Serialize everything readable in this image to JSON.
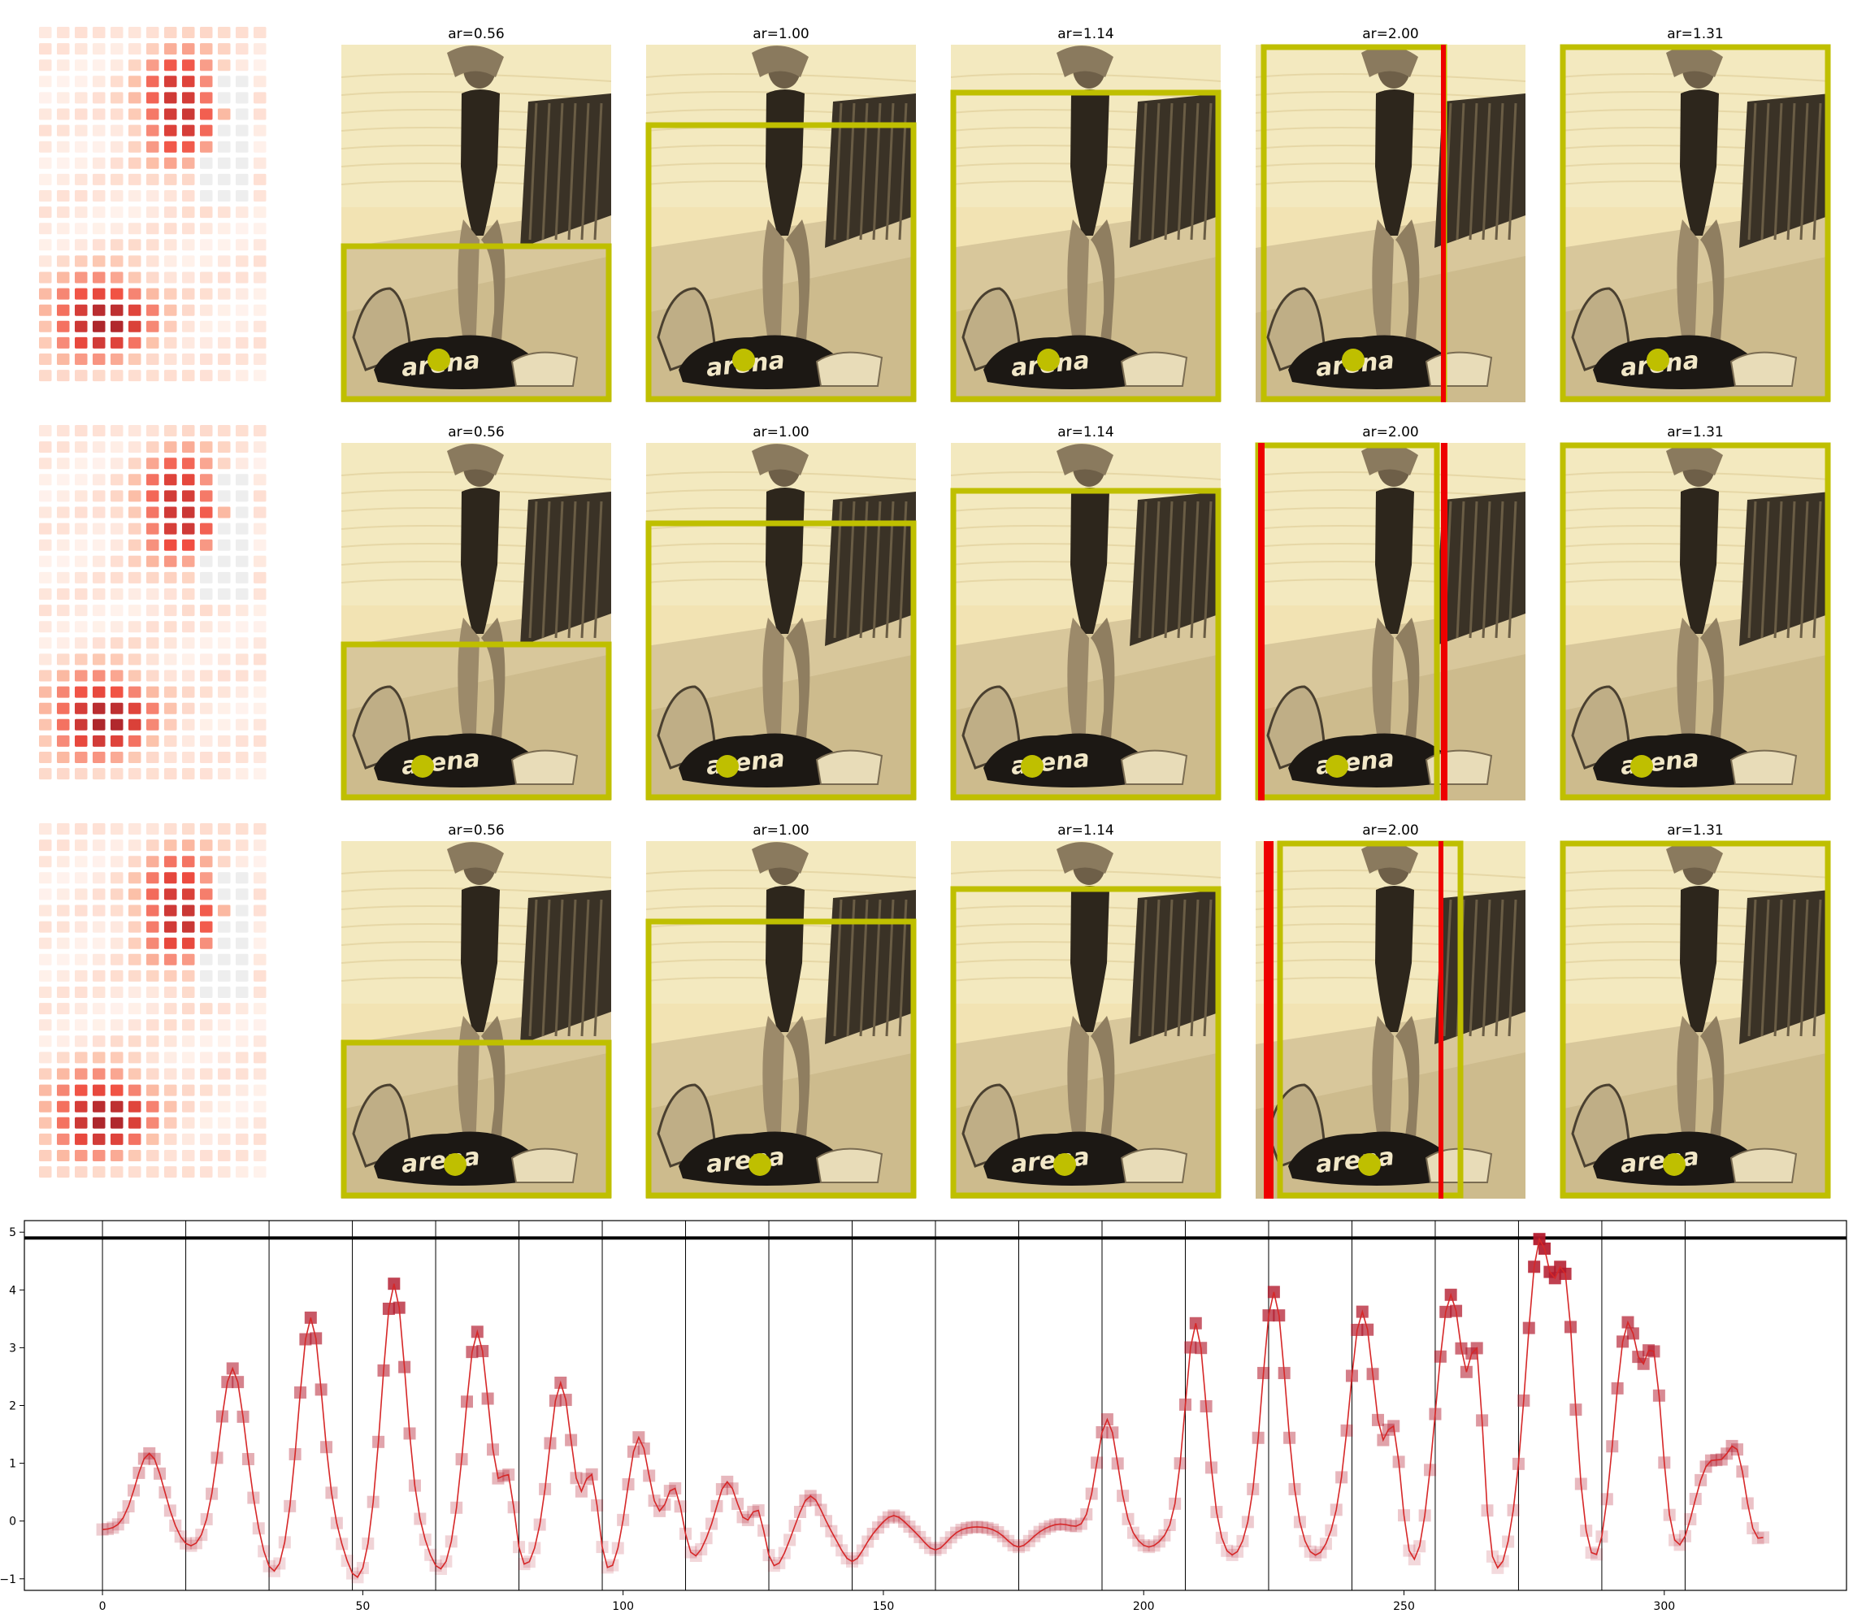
{
  "panels": {
    "aspect_ratio_titles": [
      "ar=0.56",
      "ar=1.00",
      "ar=1.14",
      "ar=2.00",
      "ar=1.31"
    ],
    "rows": 3,
    "heatmap_color": "#b2182b",
    "box_color": "#bfbf00",
    "highlight_color": "#ee0000",
    "photo_tint": "#f2e3b3",
    "bag_brand": "arena"
  },
  "chart_data": {
    "type": "line",
    "x_ticks": [
      0,
      50,
      100,
      150,
      200,
      250,
      300
    ],
    "y_ticks": [
      -1,
      0,
      1,
      2,
      3,
      4,
      5
    ],
    "xlim": [
      -15,
      335
    ],
    "ylim": [
      -1.2,
      5.2
    ],
    "threshold": 4.9,
    "vlines": [
      0,
      16,
      32,
      48,
      64,
      80,
      96,
      112,
      128,
      144,
      160,
      176,
      192,
      208,
      224,
      240,
      256,
      272,
      288,
      304
    ],
    "line_color": "#d62728",
    "marker_color": "#b2182b",
    "grid": false,
    "peaks": [
      {
        "x": 9,
        "h": 1.2,
        "w": 2.6
      },
      {
        "x": 25,
        "h": 2.7,
        "w": 2.4
      },
      {
        "x": 40,
        "h": 3.6,
        "w": 2.2
      },
      {
        "x": 56,
        "h": 4.2,
        "w": 2.2
      },
      {
        "x": 72,
        "h": 3.35,
        "w": 2.2
      },
      {
        "x": 78,
        "h": 1.0,
        "w": 1.2
      },
      {
        "x": 88,
        "h": 2.45,
        "w": 2.0
      },
      {
        "x": 94,
        "h": 1.1,
        "w": 1.3
      },
      {
        "x": 103,
        "h": 1.5,
        "w": 1.9
      },
      {
        "x": 110,
        "h": 0.8,
        "w": 1.6
      },
      {
        "x": 120,
        "h": 0.7,
        "w": 1.8
      },
      {
        "x": 126,
        "h": 0.45,
        "w": 1.2
      },
      {
        "x": 136,
        "h": 0.45,
        "w": 2.0
      },
      {
        "x": 152,
        "h": 0.1,
        "w": 2.0
      },
      {
        "x": 168,
        "h": -0.1,
        "w": 2.5
      },
      {
        "x": 184,
        "h": -0.05,
        "w": 2.2
      },
      {
        "x": 193,
        "h": 1.8,
        "w": 2.0
      },
      {
        "x": 210,
        "h": 3.5,
        "w": 2.0
      },
      {
        "x": 225,
        "h": 4.05,
        "w": 2.2
      },
      {
        "x": 242,
        "h": 3.7,
        "w": 2.4
      },
      {
        "x": 248,
        "h": 1.6,
        "w": 1.4
      },
      {
        "x": 259,
        "h": 4.0,
        "w": 2.6
      },
      {
        "x": 264,
        "h": 2.5,
        "w": 1.2
      },
      {
        "x": 276,
        "h": 4.9,
        "w": 2.4
      },
      {
        "x": 281,
        "h": 3.8,
        "w": 1.8
      },
      {
        "x": 293,
        "h": 3.5,
        "w": 2.4
      },
      {
        "x": 298,
        "h": 2.6,
        "w": 1.6
      },
      {
        "x": 309,
        "h": 1.05,
        "w": 2.8
      },
      {
        "x": 314,
        "h": 1.1,
        "w": 1.8
      }
    ],
    "dips": [
      {
        "x": 17,
        "h": 0.6,
        "w": 2.4
      },
      {
        "x": 33,
        "h": 1.5,
        "w": 2.2
      },
      {
        "x": 49,
        "h": 1.7,
        "w": 2.2
      },
      {
        "x": 65,
        "h": 1.4,
        "w": 2.2
      },
      {
        "x": 81,
        "h": 1.3,
        "w": 2.2
      },
      {
        "x": 97,
        "h": 1.5,
        "w": 2.2
      },
      {
        "x": 113,
        "h": 1.1,
        "w": 2.2
      },
      {
        "x": 129,
        "h": 1.3,
        "w": 2.2
      },
      {
        "x": 144,
        "h": 1.1,
        "w": 2.2
      },
      {
        "x": 160,
        "h": 0.7,
        "w": 2.2
      },
      {
        "x": 176,
        "h": 0.6,
        "w": 2.2
      },
      {
        "x": 201,
        "h": 0.6,
        "w": 2.4
      },
      {
        "x": 217,
        "h": 0.9,
        "w": 2.2
      },
      {
        "x": 233,
        "h": 0.9,
        "w": 2.2
      },
      {
        "x": 252,
        "h": 1.3,
        "w": 2.0
      },
      {
        "x": 268,
        "h": 1.4,
        "w": 2.0
      },
      {
        "x": 287,
        "h": 1.2,
        "w": 2.0
      },
      {
        "x": 303,
        "h": 0.8,
        "w": 2.0
      },
      {
        "x": 317,
        "h": 0.6,
        "w": 1.8
      }
    ],
    "baseline": -0.15,
    "n_points": 320
  }
}
